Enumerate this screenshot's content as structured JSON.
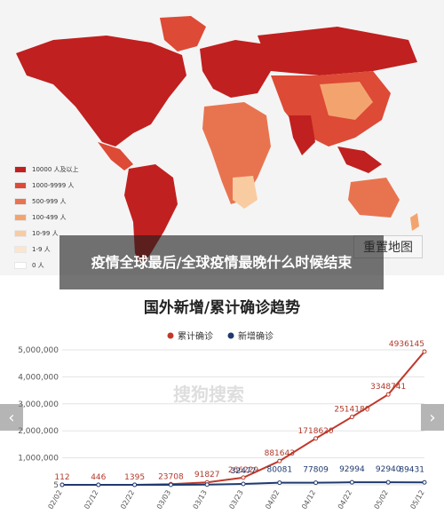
{
  "map": {
    "legend": [
      {
        "label": "10000 人及以上",
        "color": "#c0201f"
      },
      {
        "label": "1000-9999 人",
        "color": "#dd4a36"
      },
      {
        "label": "500-999 人",
        "color": "#e8744f"
      },
      {
        "label": "100-499 人",
        "color": "#f3a46e"
      },
      {
        "label": "10-99 人",
        "color": "#f9cba0"
      },
      {
        "label": "1-9 人",
        "color": "#fde4cc"
      },
      {
        "label": "0 人",
        "color": "#ffffff"
      }
    ],
    "reset_label": "重置地图"
  },
  "overlay": {
    "title": "疫情全球最后/全球疫情最晚什么时候结束"
  },
  "chart": {
    "title": "国外新增/累计确诊趋势",
    "watermark": "搜狗搜索",
    "prev_icon": "‹",
    "next_icon": "›"
  },
  "chart_data": {
    "type": "line",
    "title": "国外新增/累计确诊趋势",
    "legend_position": "top-center",
    "categories": [
      "02/02",
      "02/12",
      "02/22",
      "03/03",
      "03/13",
      "03/23",
      "04/02",
      "04/12",
      "04/22",
      "05/02",
      "05/12"
    ],
    "y_ticks": [
      "5,000,000",
      "4,000,000",
      "3,000,000",
      "2,000,000",
      "1,000,000",
      "5"
    ],
    "ylim": [
      0,
      5000000
    ],
    "series": [
      {
        "name": "累计确诊",
        "color": "#c0392b",
        "values": [
          112,
          446,
          1395,
          23708,
          91827,
          266229,
          881643,
          1718620,
          2514180,
          3348741,
          4936145
        ],
        "labels": [
          "112",
          "446",
          "1395",
          "23708",
          "91827",
          "266229",
          "881643",
          "1718620",
          "2514180",
          "3348741",
          "4936145"
        ]
      },
      {
        "name": "新增确诊",
        "color": "#1f3a6e",
        "values": [
          15,
          40,
          150,
          2000,
          9182,
          32477,
          80081,
          77809,
          92994,
          92940,
          89431
        ],
        "labels": [
          "",
          "",
          "",
          "",
          "",
          "32477",
          "80081",
          "77809",
          "92994",
          "92940",
          "89431"
        ]
      }
    ]
  }
}
